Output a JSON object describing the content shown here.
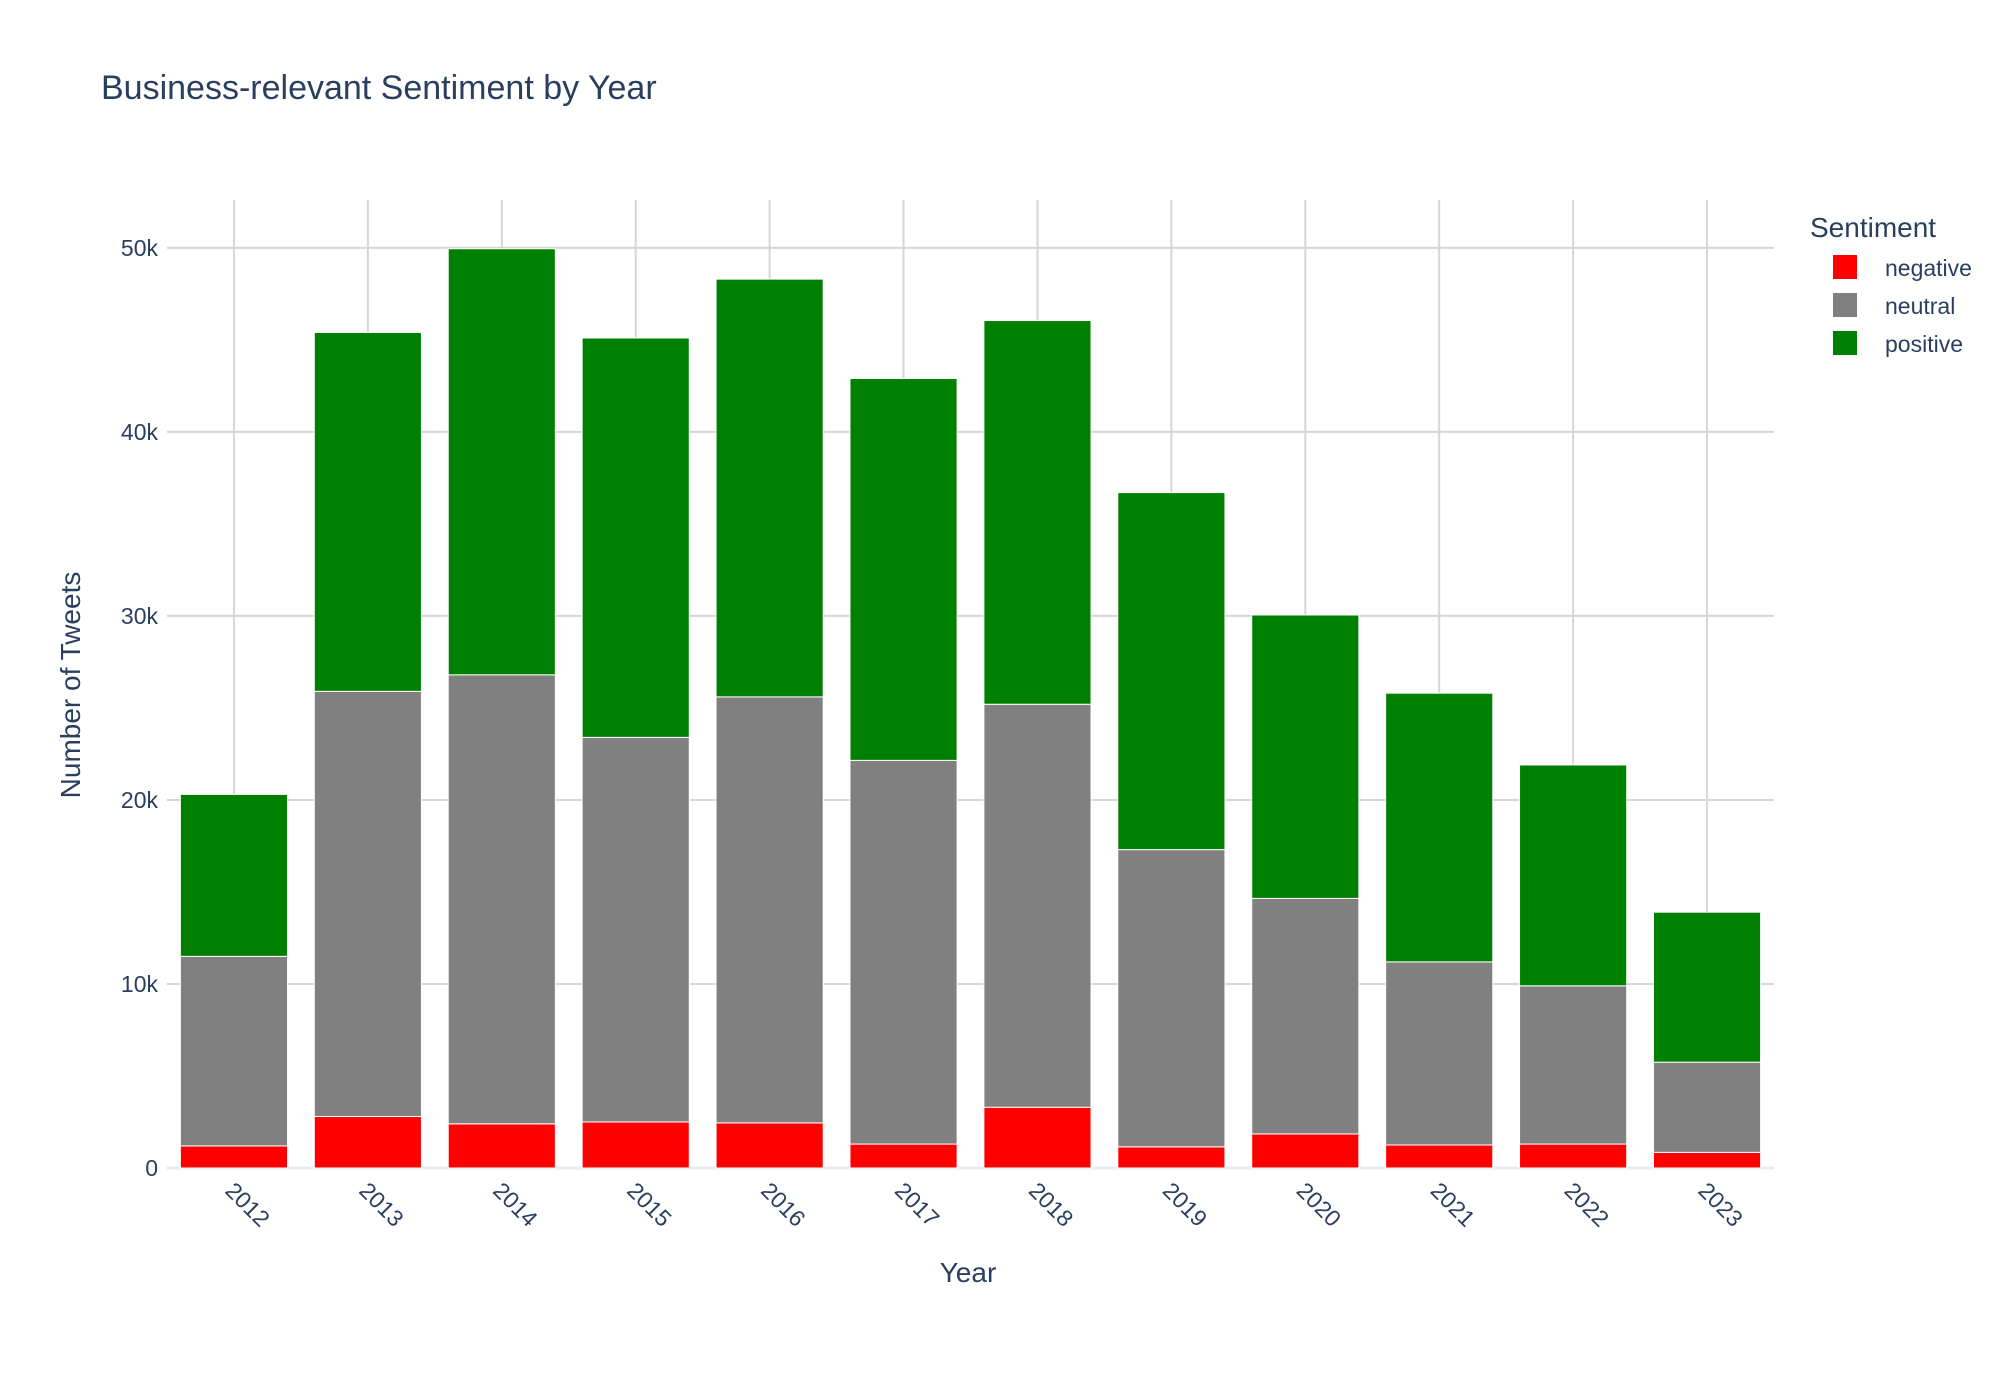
{
  "chart_data": {
    "type": "bar",
    "barmode": "stack",
    "title": "Business-relevant Sentiment by Year",
    "xlabel": "Year",
    "ylabel": "Number of Tweets",
    "categories": [
      "2012",
      "2013",
      "2014",
      "2015",
      "2016",
      "2017",
      "2018",
      "2019",
      "2020",
      "2021",
      "2022",
      "2023"
    ],
    "series": [
      {
        "name": "negative",
        "color": "#ff0000",
        "values": [
          1200,
          2800,
          2400,
          2500,
          2450,
          1300,
          3300,
          1150,
          1850,
          1250,
          1300,
          850
        ]
      },
      {
        "name": "neutral",
        "color": "#808080",
        "values": [
          10300,
          23100,
          24400,
          20900,
          23150,
          20850,
          21900,
          16150,
          12800,
          9950,
          8600,
          4900
        ]
      },
      {
        "name": "positive",
        "color": "#008000",
        "values": [
          8800,
          19500,
          23150,
          21700,
          22700,
          20750,
          20850,
          19400,
          15400,
          14600,
          12000,
          8150
        ]
      }
    ],
    "ylim": [
      0,
      52600
    ],
    "yticks": [
      0,
      10000,
      20000,
      30000,
      40000,
      50000
    ],
    "ytick_labels": [
      "0",
      "10k",
      "20k",
      "30k",
      "40k",
      "50k"
    ],
    "grid": true,
    "legend": {
      "title": "Sentiment",
      "placement": "top-right"
    }
  }
}
